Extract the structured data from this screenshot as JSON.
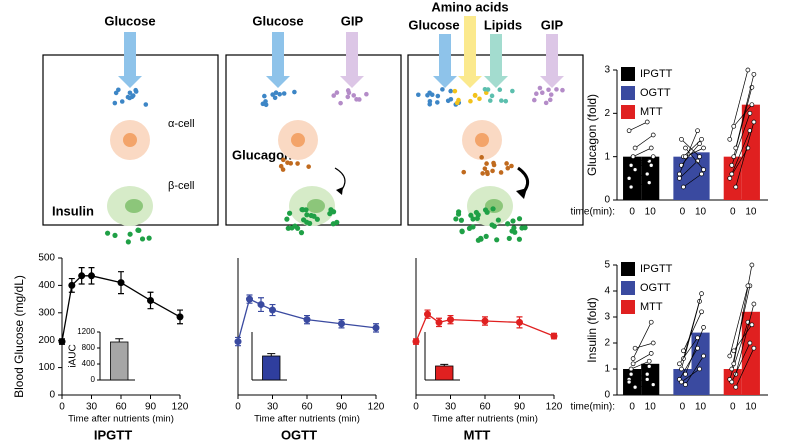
{
  "diagram": {
    "glucose_1": "Glucose",
    "alpha_cell": "α-cell",
    "beta_cell": "β-cell",
    "insulin": "Insulin",
    "glucose_2": "Glucose",
    "gip_2": "GIP",
    "glucagon": "Glucagon",
    "amino_acids": "Amino acids",
    "glucose_3": "Glucose",
    "lipids": "Lipids",
    "gip_3": "GIP"
  },
  "chart_data": [
    {
      "type": "line",
      "title": "IPGTT",
      "xlabel": "Time after nutrients (min)",
      "ylabel": "Blood Glucose (mg/dL)",
      "color": "#000000",
      "x": [
        0,
        10,
        20,
        30,
        60,
        90,
        120
      ],
      "values": [
        195,
        400,
        435,
        435,
        410,
        345,
        285
      ],
      "errors": [
        10,
        25,
        30,
        30,
        40,
        30,
        25
      ],
      "xlim": [
        0,
        120
      ],
      "xticks": [
        0,
        30,
        60,
        90,
        120
      ],
      "ylim": [
        0,
        500
      ],
      "yticks": [
        0,
        100,
        200,
        300,
        400,
        500
      ]
    },
    {
      "type": "bar",
      "ylabel": "iAUC",
      "values": [
        950
      ],
      "errors": [
        80
      ],
      "color": "#a6a6a6",
      "ylim": [
        0,
        1200
      ],
      "yticks": [
        0,
        400,
        800,
        1200
      ]
    },
    {
      "type": "line",
      "title": "OGTT",
      "xlabel": "Time after nutrients (min)",
      "color": "#3a4aa0",
      "x": [
        0,
        10,
        20,
        30,
        60,
        90,
        120
      ],
      "values": [
        195,
        350,
        330,
        310,
        275,
        260,
        245
      ],
      "errors": [
        15,
        15,
        25,
        20,
        15,
        15,
        15
      ],
      "xlim": [
        0,
        120
      ],
      "xticks": [
        0,
        30,
        60,
        90,
        120
      ],
      "ylim": [
        0,
        500
      ]
    },
    {
      "type": "bar",
      "values": [
        600
      ],
      "errors": [
        60
      ],
      "color": "#2f3e9e",
      "ylim": [
        0,
        1200
      ]
    },
    {
      "type": "line",
      "title": "MTT",
      "xlabel": "Time after nutrients (min)",
      "color": "#e02020",
      "x": [
        0,
        10,
        20,
        30,
        60,
        90,
        120
      ],
      "values": [
        195,
        295,
        265,
        275,
        270,
        265,
        215
      ],
      "errors": [
        10,
        15,
        15,
        15,
        15,
        20,
        10
      ],
      "xlim": [
        0,
        120
      ],
      "xticks": [
        0,
        30,
        60,
        90,
        120
      ],
      "ylim": [
        0,
        500
      ]
    },
    {
      "type": "bar",
      "values": [
        350
      ],
      "errors": [
        40
      ],
      "color": "#e02020",
      "ylim": [
        0,
        1200
      ]
    },
    {
      "type": "grouped_bar",
      "ylabel": "Glucagon (fold)",
      "xlabel": "time(min):",
      "categories": [
        "0",
        "10"
      ],
      "legend": "upper left",
      "ylim": [
        0,
        3
      ],
      "yticks": [
        0,
        1,
        2,
        3
      ],
      "series": [
        {
          "name": "IPGTT",
          "color": "#000000",
          "values": [
            1.0,
            1.0
          ],
          "points": [
            [
              0.5,
              0.6
            ],
            [
              0.8,
              0.9
            ],
            [
              1.0,
              1.2
            ],
            [
              1.2,
              1.5
            ],
            [
              1.6,
              1.8
            ],
            [
              0.3,
              0.4
            ],
            [
              1.0,
              0.8
            ],
            [
              0.7,
              1.0
            ]
          ]
        },
        {
          "name": "OGTT",
          "color": "#3a4aa0",
          "values": [
            1.0,
            1.1
          ],
          "points": [
            [
              0.5,
              0.9
            ],
            [
              0.8,
              1.3
            ],
            [
              1.0,
              1.4
            ],
            [
              1.2,
              0.7
            ],
            [
              0.6,
              1.6
            ],
            [
              1.4,
              1.0
            ],
            [
              0.3,
              0.6
            ],
            [
              1.0,
              1.2
            ]
          ]
        },
        {
          "name": "MTT",
          "color": "#e02020",
          "values": [
            1.0,
            2.2
          ],
          "points": [
            [
              0.5,
              1.2
            ],
            [
              0.8,
              2.0
            ],
            [
              1.0,
              2.6
            ],
            [
              1.2,
              2.9
            ],
            [
              1.4,
              3.0
            ],
            [
              0.6,
              1.6
            ],
            [
              1.7,
              2.2
            ],
            [
              0.3,
              1.8
            ]
          ]
        }
      ]
    },
    {
      "type": "grouped_bar",
      "ylabel": "Insulin (fold)",
      "xlabel": "time(min):",
      "categories": [
        "0",
        "10"
      ],
      "legend": "upper left",
      "ylim": [
        0,
        5
      ],
      "yticks": [
        0,
        1,
        2,
        3,
        4,
        5
      ],
      "series": [
        {
          "name": "IPGTT",
          "color": "#000000",
          "values": [
            1.0,
            1.2
          ],
          "points": [
            [
              0.6,
              0.8
            ],
            [
              1.0,
              1.3
            ],
            [
              1.4,
              2.8
            ],
            [
              1.8,
              2.0
            ],
            [
              0.5,
              0.6
            ],
            [
              0.8,
              1.1
            ],
            [
              1.2,
              1.6
            ],
            [
              0.3,
              0.4
            ]
          ]
        },
        {
          "name": "OGTT",
          "color": "#3a4aa0",
          "values": [
            1.0,
            2.4
          ],
          "points": [
            [
              0.6,
              1.8
            ],
            [
              1.0,
              3.6
            ],
            [
              1.4,
              3.9
            ],
            [
              0.8,
              2.6
            ],
            [
              1.2,
              2.2
            ],
            [
              0.5,
              1.0
            ],
            [
              1.7,
              3.2
            ],
            [
              0.4,
              1.5
            ]
          ]
        },
        {
          "name": "MTT",
          "color": "#e02020",
          "values": [
            1.0,
            3.2
          ],
          "points": [
            [
              0.6,
              2.8
            ],
            [
              1.0,
              4.2
            ],
            [
              1.2,
              5.0
            ],
            [
              0.8,
              3.5
            ],
            [
              1.5,
              4.2
            ],
            [
              0.5,
              2.0
            ],
            [
              1.7,
              2.7
            ],
            [
              0.3,
              1.8
            ]
          ]
        }
      ]
    }
  ]
}
